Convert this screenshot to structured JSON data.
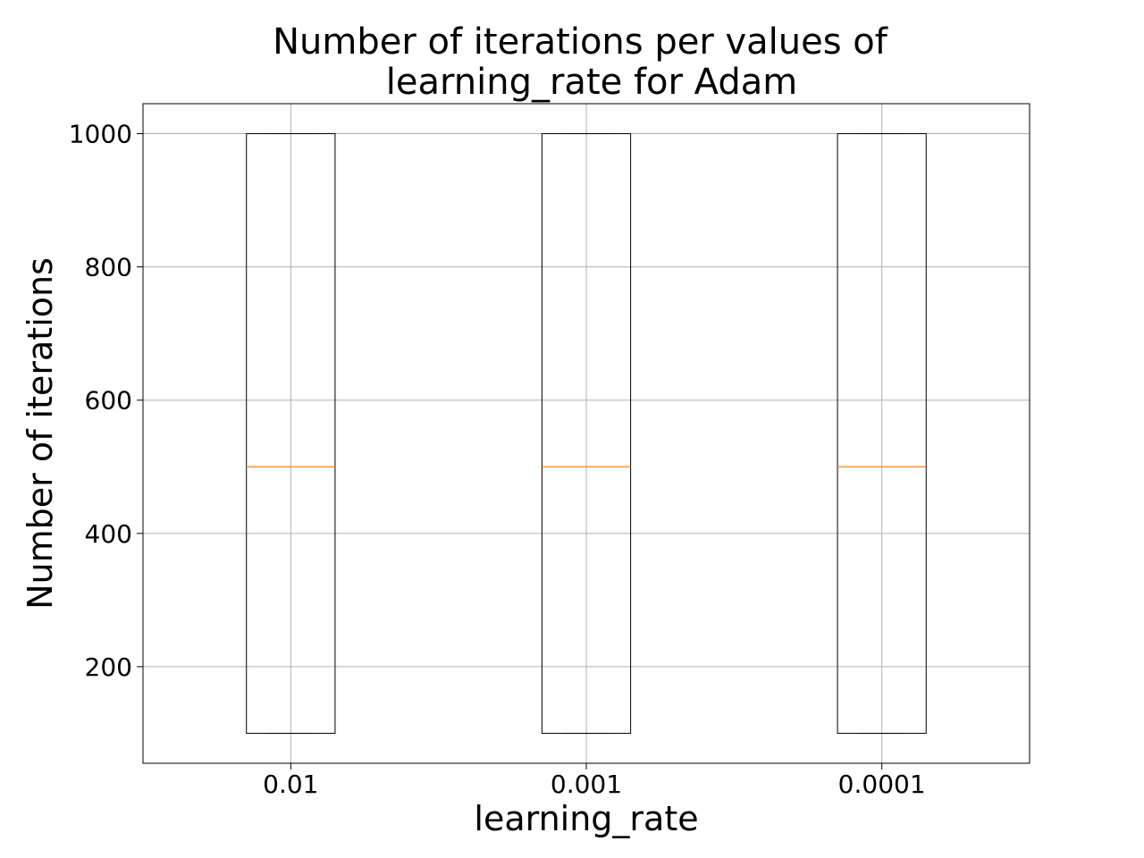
{
  "chart_data": {
    "type": "box",
    "title_line1": "Number of iterations per values of",
    "title_line2": "learning_rate for Adam",
    "xlabel": "learning_rate",
    "ylabel": "Number of iterations",
    "categories": [
      "0.01",
      "0.001",
      "0.0001"
    ],
    "boxes": [
      {
        "category": "0.01",
        "whislo": 100,
        "q1": 100,
        "median": 500,
        "q3": 1000,
        "whishi": 1000
      },
      {
        "category": "0.001",
        "whislo": 100,
        "q1": 100,
        "median": 500,
        "q3": 1000,
        "whishi": 1000
      },
      {
        "category": "0.0001",
        "whislo": 100,
        "q1": 100,
        "median": 500,
        "q3": 1000,
        "whishi": 1000
      }
    ],
    "ylim": [
      55,
      1045
    ],
    "yticks": [
      200,
      400,
      600,
      800,
      1000
    ],
    "ytick_labels": [
      "200",
      "400",
      "600",
      "800",
      "1000"
    ],
    "grid": true,
    "colors": {
      "box": "#000000",
      "median": "#ff7f0e",
      "grid": "#b0b0b0"
    }
  }
}
